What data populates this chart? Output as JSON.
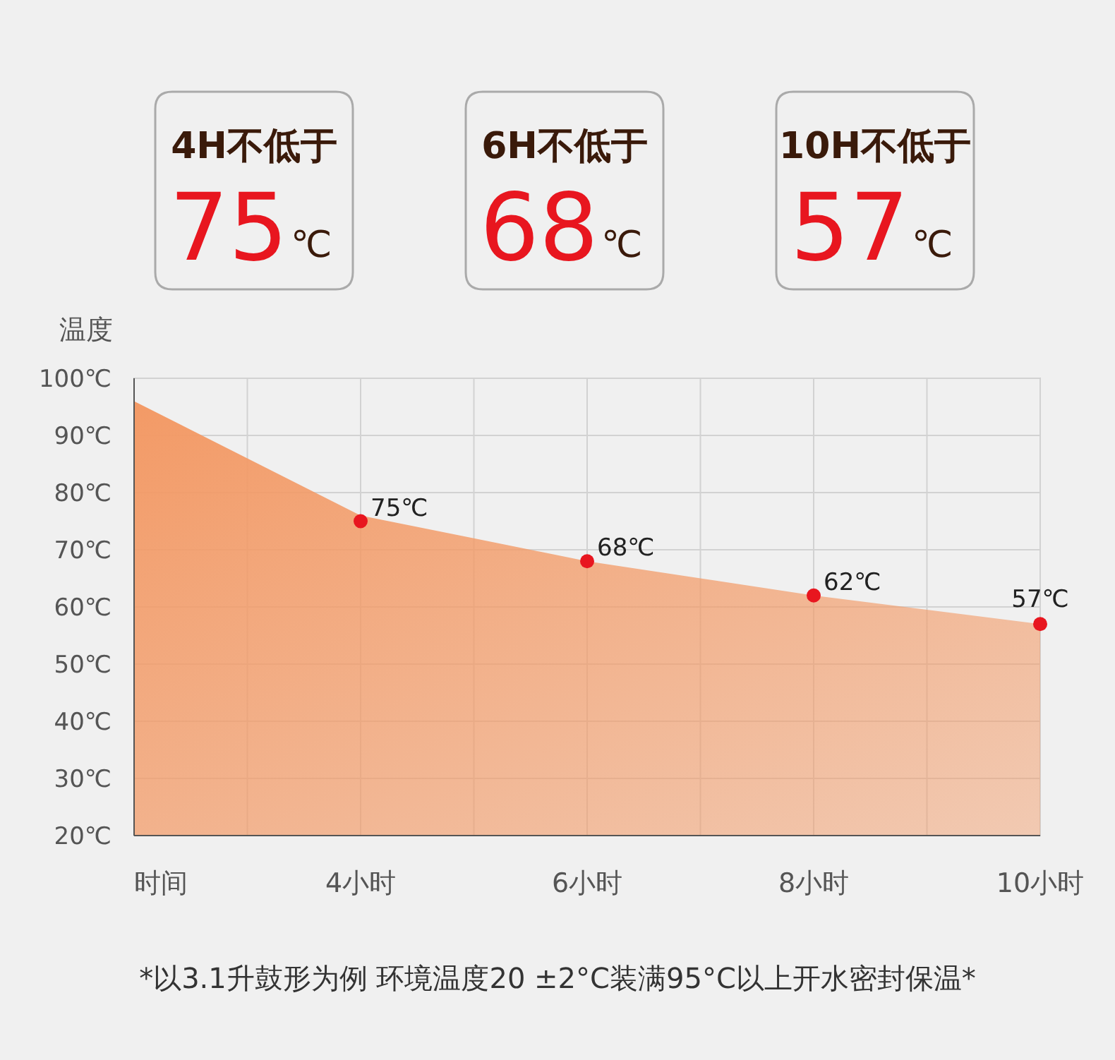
{
  "chart_data": [
    {
      "type": "other",
      "categories": [
        "4H不低于",
        "6H不低于",
        "10H不低于"
      ],
      "values": [
        75,
        68,
        57
      ],
      "data_labels": true,
      "annotations": [
        "℃",
        "℃",
        "℃"
      ],
      "color": "#e8161f"
    },
    {
      "type": "area",
      "ylabel": "温度",
      "xlabel": "时间",
      "xlim": [
        2,
        10
      ],
      "xticks": [
        {
          "value": 4,
          "label": "4小时"
        },
        {
          "value": 6,
          "label": "6小时"
        },
        {
          "value": 8,
          "label": "8小时"
        },
        {
          "value": 10,
          "label": "10小时"
        }
      ],
      "ylim": [
        20,
        100
      ],
      "yticks": [
        {
          "value": 20,
          "label": "20℃"
        },
        {
          "value": 30,
          "label": "30℃"
        },
        {
          "value": 40,
          "label": "40℃"
        },
        {
          "value": 50,
          "label": "50℃"
        },
        {
          "value": 60,
          "label": "60℃"
        },
        {
          "value": 70,
          "label": "70℃"
        },
        {
          "value": 80,
          "label": "80℃"
        },
        {
          "value": 90,
          "label": "90℃"
        },
        {
          "value": 100,
          "label": "100℃"
        }
      ],
      "grid": true,
      "series": [
        {
          "type": "area",
          "color": "#f39a66",
          "x": [
            2,
            2.5,
            3,
            3.5,
            4,
            5,
            6,
            7,
            8,
            9,
            10
          ],
          "values": [
            96,
            91,
            86,
            81,
            76,
            72,
            68,
            65,
            62,
            59.5,
            57
          ]
        },
        {
          "type": "scatter",
          "color": "#e8161f",
          "marker": "circle",
          "x": [
            4,
            6,
            8,
            10
          ],
          "values": [
            75,
            68,
            62,
            57
          ],
          "value_labels": [
            "75℃",
            "68℃",
            "62℃",
            "57℃"
          ]
        }
      ],
      "annotations": [
        "*以3.1升鼓形为例  环境温度20 ±2°C装满95°C以上开水密封保温*"
      ]
    }
  ]
}
